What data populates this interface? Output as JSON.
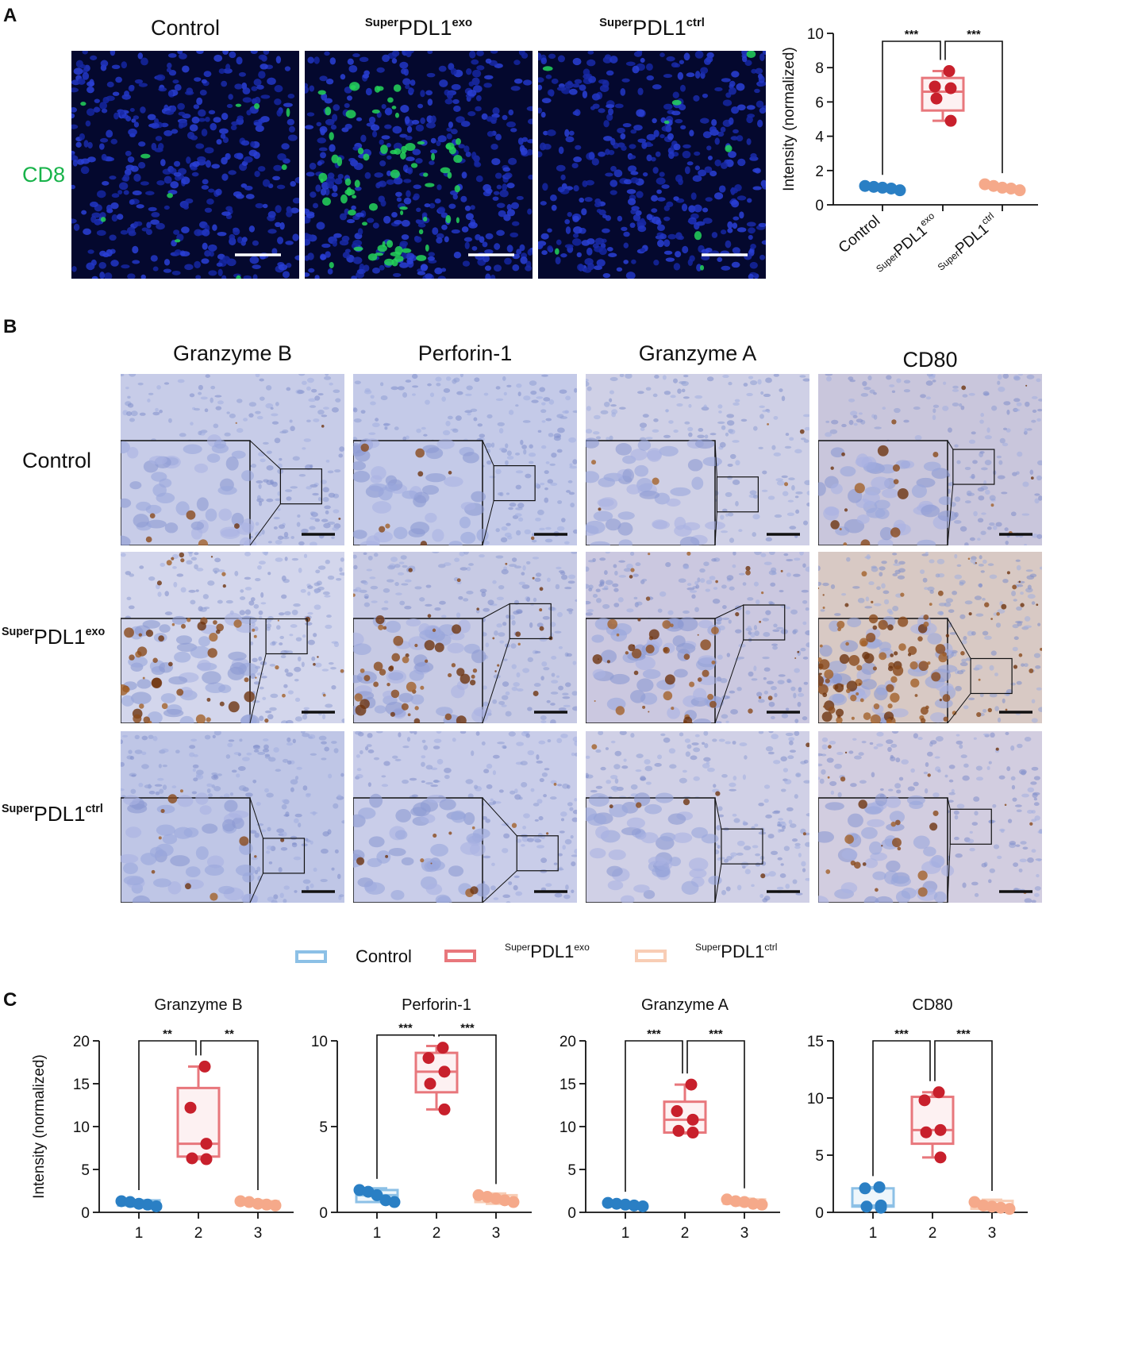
{
  "panels": {
    "a": "A",
    "b": "B",
    "c": "C"
  },
  "groups": {
    "control": {
      "label": "Control",
      "color": "#3a86c8"
    },
    "exo": {
      "base": "PDL1",
      "prefix": "Super",
      "suffix": "exo",
      "color": "#d9363e"
    },
    "ctrl": {
      "base": "PDL1",
      "prefix": "Super",
      "suffix": "ctrl",
      "color": "#f5a98a"
    }
  },
  "panel_a": {
    "stain_label": "CD8",
    "stain_color": "#18b34a",
    "columns": [
      "Control",
      "exo",
      "ctrl"
    ]
  },
  "panel_b": {
    "columns": [
      "Granzyme B",
      "Perforin-1",
      "Granzyme A",
      "CD80"
    ],
    "rows": [
      "Control",
      "exo",
      "ctrl"
    ]
  },
  "legend": {
    "control": "Control",
    "exo_suffix": "exo",
    "ctrl_suffix": "ctrl",
    "prefix": "Super",
    "base": "PDL1"
  },
  "chart_data": [
    {
      "type": "box",
      "panel": "A",
      "title": "",
      "ylabel": "Intensity (normalized)",
      "ylim": [
        0,
        10
      ],
      "yticks": [
        0,
        2,
        4,
        6,
        8,
        10
      ],
      "categories": [
        "Control",
        "SuperPDL1exo",
        "SuperPDL1ctrl"
      ],
      "series": [
        {
          "values": [
            1.0,
            1.05,
            1.1,
            0.95,
            0.85
          ]
        },
        {
          "values": [
            7.8,
            6.8,
            6.2,
            6.9,
            4.9
          ],
          "box": [
            5.5,
            6.6,
            7.4
          ],
          "whisker": [
            4.9,
            7.8
          ]
        },
        {
          "values": [
            1.1,
            1.2,
            0.95,
            0.85,
            1.0
          ]
        }
      ],
      "significance": [
        "***",
        "***"
      ]
    },
    {
      "type": "box",
      "panel": "C",
      "title": "Granzyme B",
      "ylabel": "Intensity (normalized)",
      "ylim": [
        0,
        20
      ],
      "yticks": [
        0,
        5,
        10,
        15,
        20
      ],
      "categories": [
        "1",
        "2",
        "3"
      ],
      "series": [
        {
          "values": [
            1.0,
            1.2,
            1.3,
            0.9,
            0.7
          ],
          "box": [
            0.8,
            1.0,
            1.4
          ],
          "whisker": [
            0.7,
            1.4
          ]
        },
        {
          "values": [
            17.0,
            12.2,
            8.0,
            6.3,
            6.2
          ],
          "box": [
            6.5,
            8.0,
            14.5
          ],
          "whisker": [
            6.2,
            17.0
          ]
        },
        {
          "values": [
            1.2,
            1.3,
            1.0,
            0.9,
            0.8
          ],
          "box": [
            0.9,
            1.1,
            1.3
          ],
          "whisker": [
            0.8,
            1.4
          ]
        }
      ],
      "significance": [
        "**",
        "**"
      ]
    },
    {
      "type": "box",
      "panel": "C",
      "title": "Perforin-1",
      "ylabel": "",
      "ylim": [
        0,
        10
      ],
      "yticks": [
        0,
        5,
        10
      ],
      "categories": [
        "1",
        "2",
        "3"
      ],
      "series": [
        {
          "values": [
            1.2,
            1.3,
            1.0,
            0.7,
            0.6
          ],
          "box": [
            0.6,
            1.0,
            1.3
          ],
          "whisker": [
            0.6,
            1.4
          ]
        },
        {
          "values": [
            9.6,
            9.0,
            8.2,
            7.5,
            6.0
          ],
          "box": [
            7.0,
            8.2,
            9.3
          ],
          "whisker": [
            6.0,
            9.7
          ]
        },
        {
          "values": [
            1.0,
            0.9,
            0.8,
            0.7,
            0.6
          ],
          "box": [
            0.6,
            0.8,
            1.0
          ],
          "whisker": [
            0.5,
            1.1
          ]
        }
      ],
      "significance": [
        "***",
        "***"
      ]
    },
    {
      "type": "box",
      "panel": "C",
      "title": "Granzyme A",
      "ylabel": "",
      "ylim": [
        0,
        20
      ],
      "yticks": [
        0,
        5,
        10,
        15,
        20
      ],
      "categories": [
        "1",
        "2",
        "3"
      ],
      "series": [
        {
          "values": [
            1.0,
            1.1,
            0.9,
            0.8,
            0.7
          ],
          "box": [
            0.7,
            0.9,
            1.0
          ],
          "whisker": [
            0.6,
            1.1
          ]
        },
        {
          "values": [
            14.9,
            11.8,
            10.8,
            9.5,
            9.3
          ],
          "box": [
            9.3,
            10.8,
            12.9
          ],
          "whisker": [
            9.2,
            14.9
          ]
        },
        {
          "values": [
            1.5,
            1.3,
            1.2,
            1.0,
            0.9
          ],
          "box": [
            1.0,
            1.2,
            1.5
          ],
          "whisker": [
            0.8,
            1.6
          ]
        }
      ],
      "significance": [
        "***",
        "***"
      ]
    },
    {
      "type": "box",
      "panel": "C",
      "title": "CD80",
      "ylabel": "",
      "ylim": [
        0,
        15
      ],
      "yticks": [
        0,
        5,
        10,
        15
      ],
      "categories": [
        "1",
        "2",
        "3"
      ],
      "series": [
        {
          "values": [
            2.2,
            2.1,
            0.6,
            0.5,
            0.4
          ],
          "box": [
            0.5,
            0.6,
            2.1
          ],
          "whisker": [
            0.4,
            2.2
          ]
        },
        {
          "values": [
            10.5,
            9.8,
            7.2,
            7.0,
            4.8
          ],
          "box": [
            6.0,
            7.2,
            10.1
          ],
          "whisker": [
            4.8,
            10.5
          ]
        },
        {
          "values": [
            0.9,
            0.6,
            0.5,
            0.4,
            0.3
          ],
          "box": [
            0.3,
            0.5,
            1.0
          ],
          "whisker": [
            0.2,
            1.1
          ]
        }
      ],
      "significance": [
        "***",
        "***"
      ]
    }
  ]
}
